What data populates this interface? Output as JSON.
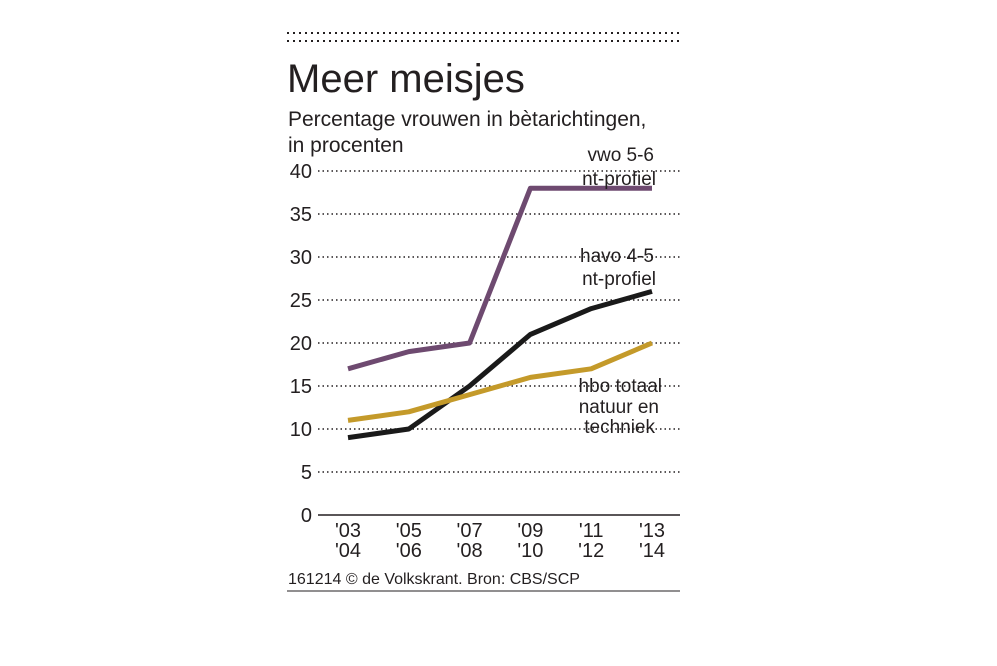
{
  "chart_data": {
    "type": "line",
    "title": "Meer meisjes",
    "subtitle_lines": [
      "Percentage vrouwen in bètarichtingen,",
      "in procenten"
    ],
    "xlabel": "",
    "ylabel": "",
    "ylim": [
      0,
      40
    ],
    "yticks": [
      0,
      5,
      10,
      15,
      20,
      25,
      30,
      35,
      40
    ],
    "ytick_labels": [
      "0",
      "5",
      "10",
      "15",
      "20",
      "25",
      "30",
      "35",
      "40"
    ],
    "categories": [
      {
        "top": "'03",
        "bottom": "'04"
      },
      {
        "top": "'05",
        "bottom": "'06"
      },
      {
        "top": "'07",
        "bottom": "'08"
      },
      {
        "top": "'09",
        "bottom": "'10"
      },
      {
        "top": "'11",
        "bottom": "'12"
      },
      {
        "top": "'13",
        "bottom": "'14"
      }
    ],
    "grid": true,
    "legend": "inline labels",
    "series": [
      {
        "name": "vwo 5-6 nt-profiel",
        "label_lines": [
          "vwo 5-6",
          "nt-profiel"
        ],
        "color": "#6e4a70",
        "values": [
          17,
          19,
          20,
          38,
          38,
          38
        ]
      },
      {
        "name": "havo 4-5 nt-profiel",
        "label_lines": [
          "havo 4-5",
          "nt-profiel"
        ],
        "color": "#1a1a1a",
        "values": [
          9,
          10,
          15,
          21,
          24,
          26
        ]
      },
      {
        "name": "hbo totaal natuur en techniek",
        "label_lines": [
          "hbo totaal",
          "natuur en",
          "techniek"
        ],
        "color": "#c49a2a",
        "values": [
          11,
          12,
          14,
          16,
          17,
          20
        ]
      }
    ],
    "source": "161214 © de Volkskrant. Bron: CBS/SCP"
  }
}
